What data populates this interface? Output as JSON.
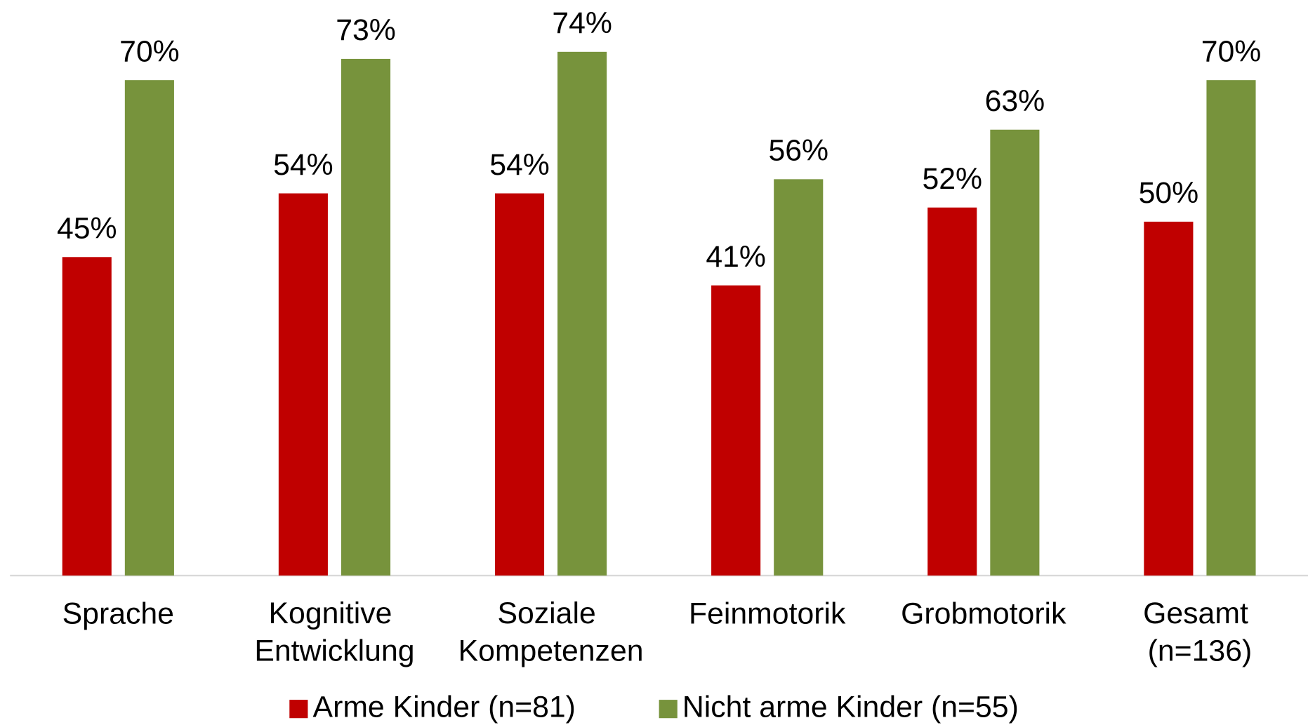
{
  "chart_data": {
    "type": "bar",
    "categories": [
      "Sprache",
      "Kognitive Entwicklung",
      "Soziale Kompetenzen",
      "Feinmotorik",
      "Grobmotorik",
      "Gesamt (n=136)"
    ],
    "series": [
      {
        "name": "Arme Kinder (n=81)",
        "color": "#c00000",
        "values": [
          45,
          54,
          54,
          41,
          52,
          50
        ],
        "value_labels": [
          "45%",
          "54%",
          "54%",
          "41%",
          "52%",
          "50%"
        ]
      },
      {
        "name": "Nicht arme Kinder (n=55)",
        "color": "#77933c",
        "values": [
          70,
          73,
          74,
          56,
          63,
          70
        ],
        "value_labels": [
          "70%",
          "73%",
          "74%",
          "56%",
          "63%",
          "70%"
        ]
      }
    ],
    "ylim": [
      0,
      80
    ],
    "legend": "bottom"
  }
}
